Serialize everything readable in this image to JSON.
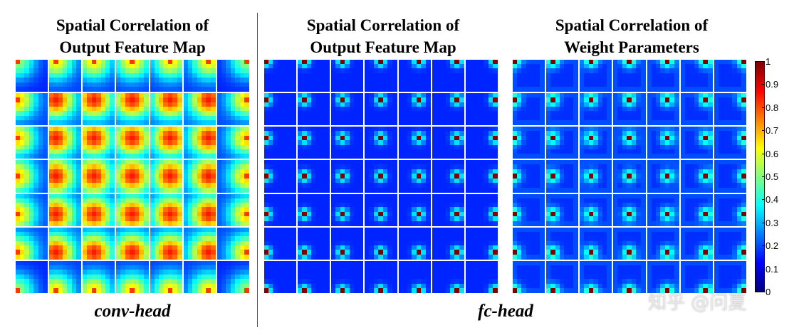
{
  "panels": [
    {
      "title_line1": "Spatial Correlation of",
      "title_line2": "Output Feature Map",
      "pattern": "conv"
    },
    {
      "title_line1": "Spatial Correlation of",
      "title_line2": "Output Feature Map",
      "pattern": "fc_feature"
    },
    {
      "title_line1": "Spatial Correlation of",
      "title_line2": "Weight Parameters",
      "pattern": "fc_weight"
    }
  ],
  "captions": {
    "conv": "conv-head",
    "fc": "fc-head"
  },
  "colorbar": {
    "ticks": [
      "1",
      "0.9",
      "0.8",
      "0.7",
      "0.6",
      "0.5",
      "0.4",
      "0.3",
      "0.2",
      "0.1",
      "0"
    ],
    "colormap": "jet",
    "range": [
      0,
      1
    ]
  },
  "watermark": "知乎 @问夏",
  "chart_data": [
    {
      "type": "heatmap",
      "title": "Spatial Correlation of Output Feature Map",
      "grid": "7x7 blocks of 7x7 correlation maps",
      "value_range": [
        0,
        1
      ],
      "group": "conv-head"
    },
    {
      "type": "heatmap",
      "title": "Spatial Correlation of Output Feature Map",
      "grid": "7x7 blocks of 7x7 correlation maps",
      "value_range": [
        0,
        1
      ],
      "group": "fc-head"
    },
    {
      "type": "heatmap",
      "title": "Spatial Correlation of Weight Parameters",
      "grid": "7x7 blocks of 7x7 correlation maps",
      "value_range": [
        0,
        1
      ],
      "group": "fc-head"
    }
  ]
}
